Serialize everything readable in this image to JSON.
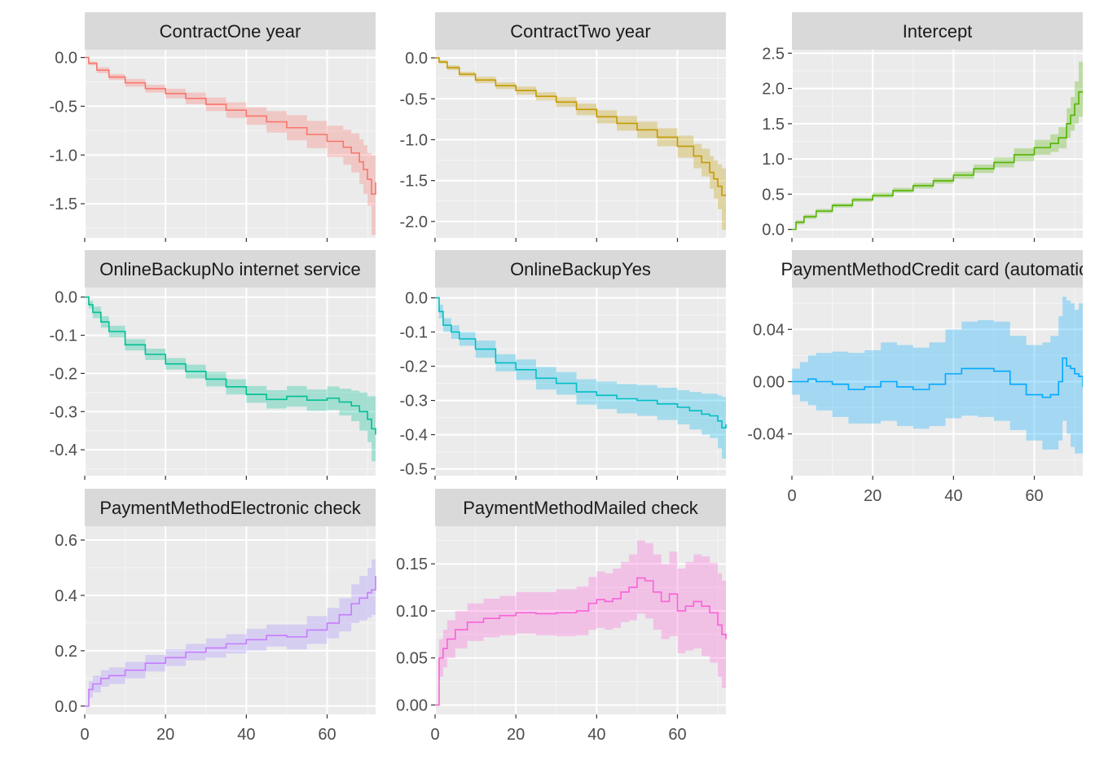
{
  "chart_data": [
    {
      "type": "line",
      "panel": "ContractOne year",
      "color": "#F8766D",
      "xlim": [
        0,
        72
      ],
      "ylim": [
        -1.85,
        0.08
      ],
      "xticks": [
        0,
        20,
        40,
        60
      ],
      "yticks": [
        0.0,
        -0.5,
        -1.0,
        -1.5
      ],
      "ytick_labels": [
        "0.0",
        "-0.5",
        "-1.0",
        "-1.5"
      ],
      "show_xticks": false,
      "x": [
        0,
        1,
        3,
        6,
        10,
        15,
        20,
        25,
        30,
        35,
        40,
        45,
        50,
        55,
        60,
        64,
        66,
        68,
        69,
        70,
        71,
        72
      ],
      "y": [
        0.0,
        -0.06,
        -0.13,
        -0.2,
        -0.26,
        -0.32,
        -0.37,
        -0.42,
        -0.48,
        -0.54,
        -0.6,
        -0.66,
        -0.72,
        -0.79,
        -0.86,
        -0.92,
        -0.98,
        -1.07,
        -1.15,
        -1.25,
        -1.4,
        -1.28
      ],
      "lower": [
        0.0,
        -0.08,
        -0.16,
        -0.23,
        -0.3,
        -0.36,
        -0.42,
        -0.48,
        -0.55,
        -0.62,
        -0.69,
        -0.77,
        -0.85,
        -0.93,
        -1.02,
        -1.1,
        -1.18,
        -1.3,
        -1.4,
        -1.52,
        -1.82,
        -1.7
      ],
      "upper": [
        0.0,
        -0.04,
        -0.1,
        -0.17,
        -0.22,
        -0.28,
        -0.32,
        -0.36,
        -0.41,
        -0.46,
        -0.51,
        -0.55,
        -0.59,
        -0.65,
        -0.7,
        -0.74,
        -0.78,
        -0.84,
        -0.9,
        -0.98,
        -1.0,
        -0.9
      ]
    },
    {
      "type": "line",
      "panel": "ContractTwo year",
      "color": "#C49A00",
      "xlim": [
        0,
        72
      ],
      "ylim": [
        -2.2,
        0.1
      ],
      "xticks": [
        0,
        20,
        40,
        60
      ],
      "yticks": [
        0.0,
        -0.5,
        -1.0,
        -1.5,
        -2.0
      ],
      "ytick_labels": [
        "0.0",
        "-0.5",
        "-1.0",
        "-1.5",
        "-2.0"
      ],
      "show_xticks": false,
      "x": [
        0,
        1,
        3,
        6,
        10,
        15,
        20,
        25,
        30,
        35,
        40,
        45,
        50,
        55,
        60,
        64,
        66,
        68,
        69,
        70,
        71,
        72
      ],
      "y": [
        0.0,
        -0.05,
        -0.12,
        -0.2,
        -0.27,
        -0.34,
        -0.4,
        -0.47,
        -0.54,
        -0.63,
        -0.72,
        -0.8,
        -0.88,
        -0.97,
        -1.08,
        -1.2,
        -1.28,
        -1.4,
        -1.48,
        -1.57,
        -1.68,
        -1.68
      ],
      "lower": [
        0.0,
        -0.07,
        -0.15,
        -0.23,
        -0.31,
        -0.38,
        -0.45,
        -0.52,
        -0.6,
        -0.7,
        -0.8,
        -0.89,
        -0.98,
        -1.08,
        -1.22,
        -1.35,
        -1.45,
        -1.6,
        -1.72,
        -1.85,
        -2.1,
        -2.1
      ],
      "upper": [
        0.0,
        -0.03,
        -0.09,
        -0.17,
        -0.23,
        -0.3,
        -0.35,
        -0.42,
        -0.48,
        -0.56,
        -0.64,
        -0.71,
        -0.78,
        -0.86,
        -0.95,
        -1.05,
        -1.11,
        -1.2,
        -1.25,
        -1.3,
        -1.35,
        -1.3
      ]
    },
    {
      "type": "line",
      "panel": "Intercept",
      "color": "#53B400",
      "xlim": [
        0,
        72
      ],
      "ylim": [
        -0.12,
        2.55
      ],
      "xticks": [
        0,
        20,
        40,
        60
      ],
      "yticks": [
        0.0,
        0.5,
        1.0,
        1.5,
        2.0,
        2.5
      ],
      "ytick_labels": [
        "0.0",
        "0.5",
        "1.0",
        "1.5",
        "2.0",
        "2.5"
      ],
      "show_xticks": false,
      "x": [
        0,
        1,
        3,
        6,
        10,
        15,
        20,
        25,
        30,
        35,
        40,
        45,
        50,
        55,
        60,
        64,
        66,
        68,
        69,
        70,
        71,
        72
      ],
      "y": [
        0.0,
        0.1,
        0.18,
        0.26,
        0.34,
        0.42,
        0.48,
        0.55,
        0.62,
        0.69,
        0.77,
        0.86,
        0.95,
        1.06,
        1.16,
        1.22,
        1.3,
        1.5,
        1.62,
        1.78,
        1.95,
        1.95
      ],
      "lower": [
        0.0,
        0.07,
        0.15,
        0.23,
        0.31,
        0.39,
        0.45,
        0.52,
        0.58,
        0.65,
        0.72,
        0.8,
        0.88,
        0.97,
        1.06,
        1.1,
        1.15,
        1.3,
        1.4,
        1.5,
        1.6,
        1.6
      ],
      "upper": [
        0.0,
        0.13,
        0.21,
        0.29,
        0.37,
        0.45,
        0.52,
        0.59,
        0.66,
        0.73,
        0.82,
        0.92,
        1.02,
        1.15,
        1.27,
        1.35,
        1.45,
        1.72,
        1.88,
        2.1,
        2.38,
        2.38
      ]
    },
    {
      "type": "line",
      "panel": "OnlineBackupNo internet service",
      "color": "#00C094",
      "xlim": [
        0,
        72
      ],
      "ylim": [
        -0.468,
        0.025
      ],
      "xticks": [
        0,
        20,
        40,
        60
      ],
      "yticks": [
        0.0,
        -0.1,
        -0.2,
        -0.3,
        -0.4
      ],
      "ytick_labels": [
        "0.0",
        "-0.1",
        "-0.2",
        "-0.3",
        "-0.4"
      ],
      "show_xticks": false,
      "x": [
        0,
        1,
        2,
        4,
        6,
        10,
        15,
        20,
        25,
        30,
        35,
        40,
        45,
        50,
        55,
        60,
        63,
        66,
        68,
        70,
        71,
        72
      ],
      "y": [
        0.0,
        -0.02,
        -0.04,
        -0.065,
        -0.09,
        -0.125,
        -0.15,
        -0.175,
        -0.195,
        -0.215,
        -0.235,
        -0.255,
        -0.268,
        -0.26,
        -0.27,
        -0.265,
        -0.275,
        -0.285,
        -0.3,
        -0.32,
        -0.345,
        -0.36
      ],
      "lower": [
        0.0,
        -0.03,
        -0.055,
        -0.08,
        -0.105,
        -0.14,
        -0.165,
        -0.19,
        -0.213,
        -0.234,
        -0.255,
        -0.277,
        -0.292,
        -0.287,
        -0.298,
        -0.296,
        -0.31,
        -0.325,
        -0.35,
        -0.38,
        -0.43,
        -0.45
      ],
      "upper": [
        0.0,
        -0.01,
        -0.025,
        -0.05,
        -0.075,
        -0.11,
        -0.135,
        -0.16,
        -0.177,
        -0.196,
        -0.215,
        -0.233,
        -0.244,
        -0.233,
        -0.242,
        -0.234,
        -0.24,
        -0.245,
        -0.25,
        -0.26,
        -0.26,
        -0.27
      ]
    },
    {
      "type": "line",
      "panel": "OnlineBackupYes",
      "color": "#00B6EB",
      "line_color": "#00BFC4",
      "xlim": [
        0,
        72
      ],
      "ylim": [
        -0.52,
        0.03
      ],
      "xticks": [
        0,
        20,
        40,
        60
      ],
      "yticks": [
        0.0,
        -0.1,
        -0.2,
        -0.3,
        -0.4,
        -0.5
      ],
      "ytick_labels": [
        "0.0",
        "-0.1",
        "-0.2",
        "-0.3",
        "-0.4",
        "-0.5"
      ],
      "show_xticks": false,
      "x": [
        0,
        1,
        2,
        4,
        6,
        10,
        15,
        20,
        25,
        30,
        35,
        40,
        45,
        50,
        55,
        60,
        63,
        66,
        68,
        70,
        71,
        72
      ],
      "y": [
        0.0,
        -0.04,
        -0.08,
        -0.1,
        -0.12,
        -0.15,
        -0.19,
        -0.21,
        -0.235,
        -0.25,
        -0.275,
        -0.285,
        -0.295,
        -0.3,
        -0.31,
        -0.32,
        -0.33,
        -0.34,
        -0.345,
        -0.36,
        -0.38,
        -0.37
      ],
      "lower": [
        0.0,
        -0.06,
        -0.1,
        -0.12,
        -0.14,
        -0.175,
        -0.215,
        -0.24,
        -0.268,
        -0.283,
        -0.312,
        -0.325,
        -0.338,
        -0.345,
        -0.357,
        -0.37,
        -0.385,
        -0.4,
        -0.41,
        -0.44,
        -0.47,
        -0.47
      ],
      "upper": [
        0.0,
        -0.02,
        -0.06,
        -0.08,
        -0.1,
        -0.125,
        -0.165,
        -0.18,
        -0.202,
        -0.217,
        -0.238,
        -0.245,
        -0.252,
        -0.255,
        -0.263,
        -0.27,
        -0.275,
        -0.28,
        -0.28,
        -0.285,
        -0.29,
        -0.29
      ]
    },
    {
      "type": "line",
      "panel": "PaymentMethodCredit card (automatic)",
      "color": "#00A9FF",
      "xlim": [
        0,
        72
      ],
      "ylim": [
        -0.072,
        0.072
      ],
      "xticks": [
        0,
        20,
        40,
        60
      ],
      "xtick_labels": [
        "0",
        "20",
        "40",
        "60"
      ],
      "yticks": [
        0.04,
        0.0,
        -0.04
      ],
      "ytick_labels": [
        "0.04",
        "0.00",
        "-0.04"
      ],
      "show_xticks": true,
      "x": [
        0,
        2,
        4,
        6,
        10,
        14,
        18,
        22,
        26,
        30,
        34,
        38,
        42,
        46,
        50,
        54,
        58,
        62,
        64,
        66,
        67,
        68,
        69,
        70,
        71,
        72
      ],
      "y": [
        0.0,
        0.0,
        0.002,
        0.0,
        -0.002,
        -0.006,
        -0.004,
        0.0,
        -0.004,
        -0.006,
        -0.002,
        0.006,
        0.01,
        0.01,
        0.008,
        -0.002,
        -0.01,
        -0.012,
        -0.01,
        0.0,
        0.018,
        0.012,
        0.01,
        0.006,
        0.004,
        -0.004
      ],
      "lower": [
        -0.01,
        -0.015,
        -0.018,
        -0.022,
        -0.027,
        -0.032,
        -0.032,
        -0.03,
        -0.034,
        -0.036,
        -0.034,
        -0.028,
        -0.026,
        -0.027,
        -0.03,
        -0.037,
        -0.045,
        -0.052,
        -0.052,
        -0.045,
        -0.03,
        -0.04,
        -0.05,
        -0.055,
        -0.055,
        -0.055
      ],
      "upper": [
        0.01,
        0.015,
        0.02,
        0.022,
        0.023,
        0.022,
        0.024,
        0.03,
        0.028,
        0.026,
        0.03,
        0.04,
        0.046,
        0.047,
        0.046,
        0.035,
        0.028,
        0.03,
        0.035,
        0.05,
        0.065,
        0.062,
        0.06,
        0.055,
        0.06,
        0.05
      ]
    },
    {
      "type": "line",
      "panel": "PaymentMethodElectronic check",
      "color": "#A58AFF",
      "line_color": "#C77CFF",
      "xlim": [
        0,
        72
      ],
      "ylim": [
        -0.03,
        0.65
      ],
      "xticks": [
        0,
        20,
        40,
        60
      ],
      "xtick_labels": [
        "0",
        "20",
        "40",
        "60"
      ],
      "yticks": [
        0.0,
        0.2,
        0.4,
        0.6
      ],
      "ytick_labels": [
        "0.0",
        "0.2",
        "0.4",
        "0.6"
      ],
      "show_xticks": true,
      "x": [
        0,
        1,
        2,
        4,
        6,
        10,
        15,
        20,
        25,
        30,
        35,
        40,
        45,
        50,
        55,
        60,
        63,
        66,
        68,
        70,
        71,
        72
      ],
      "y": [
        0.0,
        0.06,
        0.08,
        0.1,
        0.11,
        0.13,
        0.155,
        0.175,
        0.195,
        0.21,
        0.225,
        0.24,
        0.255,
        0.25,
        0.275,
        0.3,
        0.33,
        0.37,
        0.39,
        0.41,
        0.42,
        0.47
      ],
      "lower": [
        0.0,
        0.03,
        0.05,
        0.07,
        0.08,
        0.1,
        0.125,
        0.145,
        0.165,
        0.175,
        0.19,
        0.2,
        0.215,
        0.205,
        0.225,
        0.245,
        0.27,
        0.3,
        0.31,
        0.32,
        0.33,
        0.36
      ],
      "upper": [
        0.0,
        0.09,
        0.11,
        0.13,
        0.14,
        0.16,
        0.185,
        0.205,
        0.225,
        0.245,
        0.26,
        0.28,
        0.295,
        0.295,
        0.325,
        0.355,
        0.39,
        0.44,
        0.47,
        0.5,
        0.53,
        0.56
      ]
    },
    {
      "type": "line",
      "panel": "PaymentMethodMailed check",
      "color": "#FB61D7",
      "xlim": [
        0,
        72
      ],
      "ylim": [
        -0.01,
        0.19
      ],
      "xticks": [
        0,
        20,
        40,
        60
      ],
      "xtick_labels": [
        "0",
        "20",
        "40",
        "60"
      ],
      "yticks": [
        0.0,
        0.05,
        0.1,
        0.15
      ],
      "ytick_labels": [
        "0.00",
        "0.05",
        "0.10",
        "0.15"
      ],
      "show_xticks": true,
      "x": [
        0,
        1,
        2,
        3,
        5,
        8,
        12,
        16,
        20,
        25,
        30,
        35,
        38,
        40,
        42,
        44,
        46,
        48,
        50,
        52,
        54,
        56,
        58,
        60,
        62,
        64,
        66,
        68,
        70,
        71,
        72
      ],
      "y": [
        0.0,
        0.05,
        0.06,
        0.07,
        0.08,
        0.088,
        0.092,
        0.095,
        0.098,
        0.097,
        0.098,
        0.1,
        0.108,
        0.112,
        0.11,
        0.113,
        0.12,
        0.125,
        0.135,
        0.132,
        0.12,
        0.11,
        0.118,
        0.1,
        0.105,
        0.11,
        0.105,
        0.098,
        0.085,
        0.075,
        0.07
      ],
      "lower": [
        0.0,
        0.03,
        0.04,
        0.05,
        0.06,
        0.068,
        0.072,
        0.074,
        0.076,
        0.074,
        0.073,
        0.074,
        0.08,
        0.082,
        0.08,
        0.082,
        0.088,
        0.09,
        0.097,
        0.092,
        0.08,
        0.07,
        0.073,
        0.055,
        0.058,
        0.06,
        0.052,
        0.045,
        0.03,
        0.018,
        0.012
      ],
      "upper": [
        0.0,
        0.07,
        0.08,
        0.09,
        0.1,
        0.108,
        0.113,
        0.116,
        0.12,
        0.12,
        0.123,
        0.126,
        0.136,
        0.142,
        0.14,
        0.145,
        0.152,
        0.16,
        0.175,
        0.172,
        0.16,
        0.15,
        0.163,
        0.145,
        0.152,
        0.16,
        0.158,
        0.151,
        0.14,
        0.132,
        0.128
      ]
    }
  ]
}
